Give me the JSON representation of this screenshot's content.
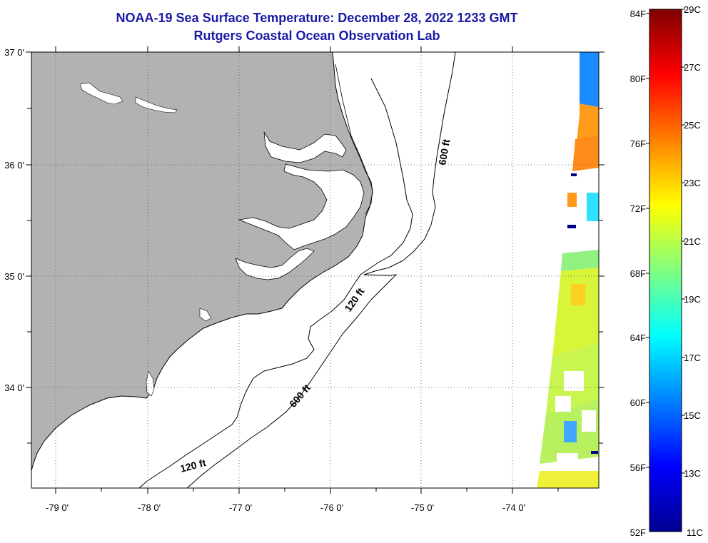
{
  "title_line1": "NOAA-19 Sea Surface Temperature:  December 28, 2022 1233 GMT",
  "title_line2": "Rutgers Coastal Ocean Observation Lab",
  "map": {
    "lat_labels": [
      "37 0'",
      "36 0'",
      "35 0'",
      "34 0'"
    ],
    "lon_labels": [
      "-79 0'",
      "-78 0'",
      "-77 0'",
      "-76 0'",
      "-75 0'",
      "-74 0'"
    ],
    "land_color": "#b2b2b2",
    "contour_labels": {
      "c600_north": "600 ft",
      "c600_south": "600 ft",
      "c120_mid": "120 ft",
      "c120_south": "120 ft"
    }
  },
  "colorbar": {
    "f_labels": [
      "84F",
      "80F",
      "76F",
      "72F",
      "68F",
      "64F",
      "60F",
      "56F",
      "52F"
    ],
    "c_labels": [
      "29C",
      "27C",
      "25C",
      "23C",
      "21C",
      "19C",
      "17C",
      "15C",
      "13C",
      "11C"
    ],
    "colors": [
      "#7f0000",
      "#ff0000",
      "#ff8000",
      "#ffff00",
      "#80ff80",
      "#00ffff",
      "#0080ff",
      "#0000ff",
      "#00008f"
    ]
  }
}
